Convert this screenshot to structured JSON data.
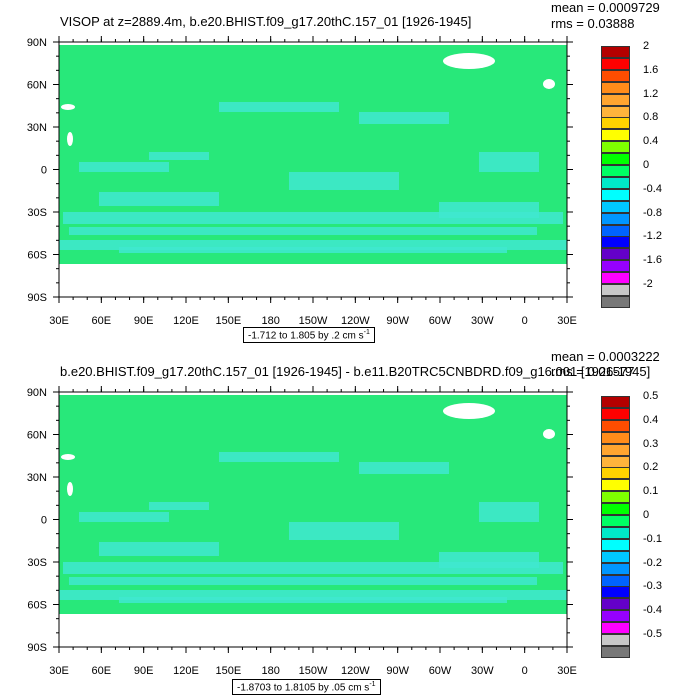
{
  "panels": [
    {
      "title": "VISOP at z=2889.4m, b.e20.BHIST.f09_g17.20thC.157_01 [1926-1945]",
      "mean": "mean = 0.0009729",
      "rms": "rms = 0.03888",
      "range_prefix": "-1.712 to 1.805 by .2 cm s",
      "range_sup": "-1",
      "lat_labels": [
        "90N",
        "60N",
        "30N",
        "0",
        "30S",
        "60S",
        "90S"
      ],
      "lon_labels": [
        "30E",
        "60E",
        "90E",
        "120E",
        "150E",
        "180",
        "150W",
        "120W",
        "90W",
        "60W",
        "30W",
        "0",
        "30E"
      ],
      "legend_labels": [
        "2",
        "1.6",
        "1.2",
        "0.8",
        "0.4",
        "0",
        "-0.4",
        "-0.8",
        "-1.2",
        "-1.6",
        "-2"
      ]
    },
    {
      "title": "b.e20.BHIST.f09_g17.20thC.157_01 [1926-1945] - b.e11.B20TRC5CNBDRD.f09_g16.001 [1926-1945]",
      "mean": "mean = 0.0003222",
      "rms": "rms = 0.01577",
      "range_prefix": "-1.8703 to 1.8105 by .05 cm s",
      "range_sup": "-1",
      "lat_labels": [
        "90N",
        "60N",
        "30N",
        "0",
        "30S",
        "60S",
        "90S"
      ],
      "lon_labels": [
        "30E",
        "60E",
        "90E",
        "120E",
        "150E",
        "180",
        "150W",
        "120W",
        "90W",
        "60W",
        "30W",
        "0",
        "30E"
      ],
      "legend_labels": [
        "0.5",
        "0.4",
        "0.3",
        "0.2",
        "0.1",
        "0",
        "-0.1",
        "-0.2",
        "-0.3",
        "-0.4",
        "-0.5"
      ]
    }
  ],
  "colors": {
    "map_fill": "#28e87a",
    "cyan_patch": "#40e8d0",
    "land_blank": "#ffffff",
    "legend_swatches": [
      "#b40000",
      "#ff0000",
      "#ff4d00",
      "#ff8c1a",
      "#ffa530",
      "#ffb43c",
      "#ffd200",
      "#ffff00",
      "#7fff00",
      "#00ff00",
      "#00ff64",
      "#00e8c8",
      "#00ffff",
      "#00c8ff",
      "#0096ff",
      "#0064ff",
      "#0000ff",
      "#6400c8",
      "#9600ff",
      "#ff00ff",
      "#c8c8c8",
      "#787878"
    ]
  }
}
